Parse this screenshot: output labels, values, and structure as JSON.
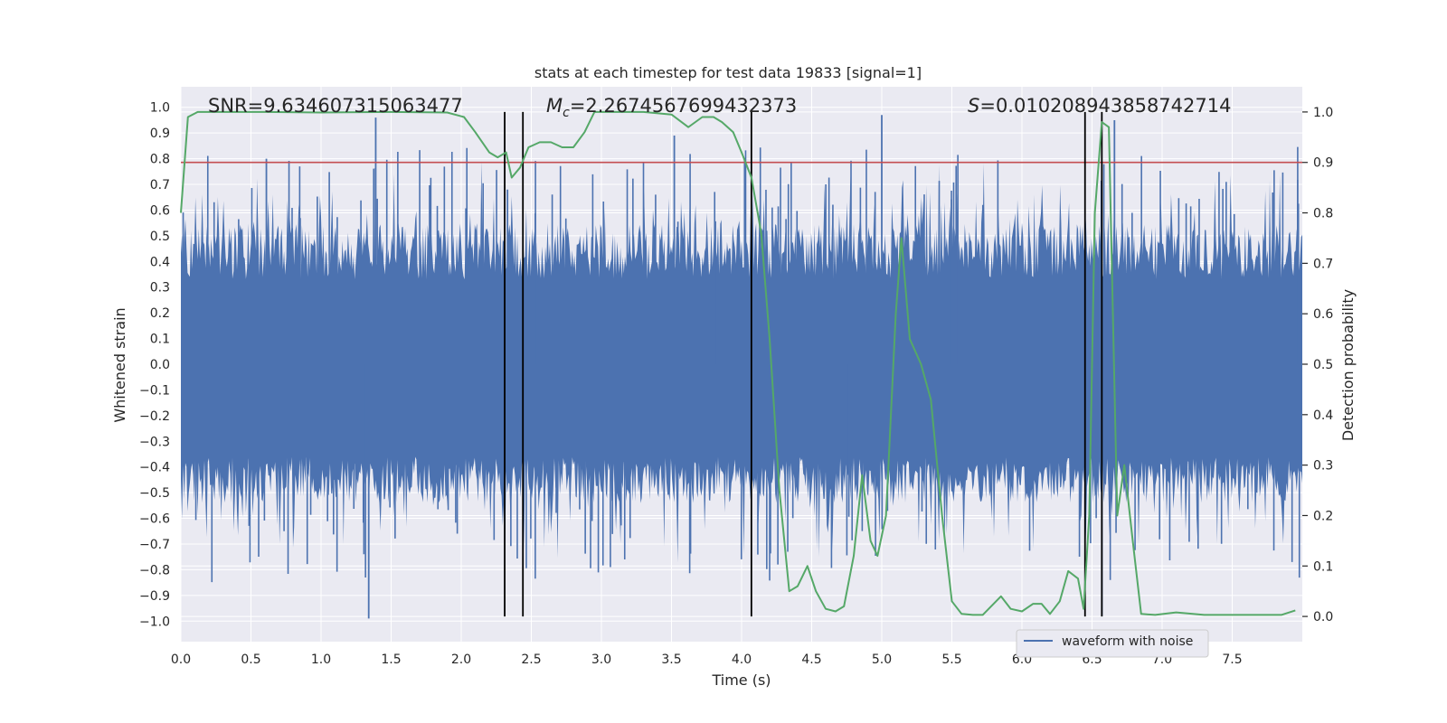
{
  "chart_data": {
    "type": "line",
    "title": "stats at each timestep for test data 19833 [signal=1]",
    "xlabel": "Time (s)",
    "ylabel": "Whitened strain",
    "y2label": "Detection probability",
    "xlim": [
      0.0,
      8.0
    ],
    "ylim": [
      -1.08,
      1.08
    ],
    "y2lim": [
      -0.05,
      1.05
    ],
    "grid": true,
    "x_ticks": [
      "0.0",
      "0.5",
      "1.0",
      "1.5",
      "2.0",
      "2.5",
      "3.0",
      "3.5",
      "4.0",
      "4.5",
      "5.0",
      "5.5",
      "6.0",
      "6.5",
      "7.0",
      "7.5"
    ],
    "y_ticks": [
      "1.0",
      "0.9",
      "0.8",
      "0.7",
      "0.6",
      "0.5",
      "0.4",
      "0.3",
      "0.2",
      "0.1",
      "0.0",
      "-0.1",
      "-0.2",
      "-0.3",
      "-0.4",
      "-0.5",
      "-0.6",
      "-0.7",
      "-0.8",
      "-0.9",
      "-1.0"
    ],
    "y2_ticks": [
      "1.0",
      "0.9",
      "0.8",
      "0.7",
      "0.6",
      "0.5",
      "0.4",
      "0.3",
      "0.2",
      "0.1",
      "0.0"
    ],
    "annotations": {
      "snr": "SNR=9.634607315063477",
      "mc_symbol": "M",
      "mc_subscript": "c",
      "mc_value": "=2.2674567699432373",
      "s_symbol": "S",
      "s_value": "=0.010208943858742714"
    },
    "threshold": {
      "value": 0.9,
      "color": "#c44e52"
    },
    "vertical_lines_x": [
      2.31,
      2.44,
      4.07,
      6.45,
      6.57
    ],
    "series": [
      {
        "name": "waveform with noise",
        "color": "#4c72b0",
        "axis": "left",
        "description": "whitened strain noise, roughly uniform amplitude",
        "peaks": [
          {
            "x": 0.61,
            "y": 0.8
          },
          {
            "x": 1.34,
            "y": -0.99
          },
          {
            "x": 1.39,
            "y": 0.96
          },
          {
            "x": 2.33,
            "y": 0.68
          },
          {
            "x": 3.52,
            "y": 0.89
          },
          {
            "x": 5.0,
            "y": 0.97
          },
          {
            "x": 6.57,
            "y": -0.98
          },
          {
            "x": 6.66,
            "y": 0.95
          }
        ]
      },
      {
        "name": "Detection probability",
        "color": "#55a868",
        "axis": "right",
        "x": [
          0.0,
          0.05,
          0.12,
          0.3,
          0.6,
          1.0,
          1.5,
          1.9,
          2.02,
          2.1,
          2.2,
          2.26,
          2.32,
          2.36,
          2.42,
          2.48,
          2.56,
          2.64,
          2.72,
          2.8,
          2.88,
          2.95,
          3.05,
          3.3,
          3.5,
          3.62,
          3.72,
          3.8,
          3.86,
          3.94,
          4.0,
          4.07,
          4.14,
          4.2,
          4.27,
          4.34,
          4.4,
          4.47,
          4.53,
          4.6,
          4.67,
          4.73,
          4.8,
          4.86,
          4.92,
          4.97,
          5.03,
          5.1,
          5.14,
          5.2,
          5.28,
          5.35,
          5.43,
          5.5,
          5.57,
          5.65,
          5.72,
          5.78,
          5.85,
          5.92,
          6.0,
          6.08,
          6.14,
          6.2,
          6.27,
          6.33,
          6.4,
          6.44,
          6.48,
          6.52,
          6.57,
          6.62,
          6.68,
          6.73,
          6.79,
          6.85,
          6.95,
          7.1,
          7.3,
          7.6,
          7.85,
          7.95
        ],
        "values": [
          0.8,
          0.99,
          1.0,
          1.0,
          1.0,
          0.999,
          1.0,
          0.999,
          0.99,
          0.96,
          0.92,
          0.91,
          0.92,
          0.87,
          0.89,
          0.93,
          0.94,
          0.94,
          0.93,
          0.93,
          0.96,
          1.0,
          1.0,
          1.0,
          0.995,
          0.97,
          0.99,
          0.99,
          0.98,
          0.96,
          0.92,
          0.87,
          0.76,
          0.55,
          0.25,
          0.05,
          0.06,
          0.1,
          0.05,
          0.015,
          0.01,
          0.02,
          0.12,
          0.28,
          0.15,
          0.12,
          0.2,
          0.6,
          0.75,
          0.55,
          0.5,
          0.43,
          0.2,
          0.03,
          0.005,
          0.003,
          0.003,
          0.02,
          0.04,
          0.015,
          0.01,
          0.025,
          0.025,
          0.005,
          0.03,
          0.09,
          0.075,
          0.015,
          0.2,
          0.8,
          0.98,
          0.97,
          0.2,
          0.3,
          0.15,
          0.005,
          0.003,
          0.008,
          0.003,
          0.003,
          0.003,
          0.012
        ]
      }
    ],
    "legend": {
      "label": "waveform with noise",
      "location": "lower-right"
    }
  }
}
